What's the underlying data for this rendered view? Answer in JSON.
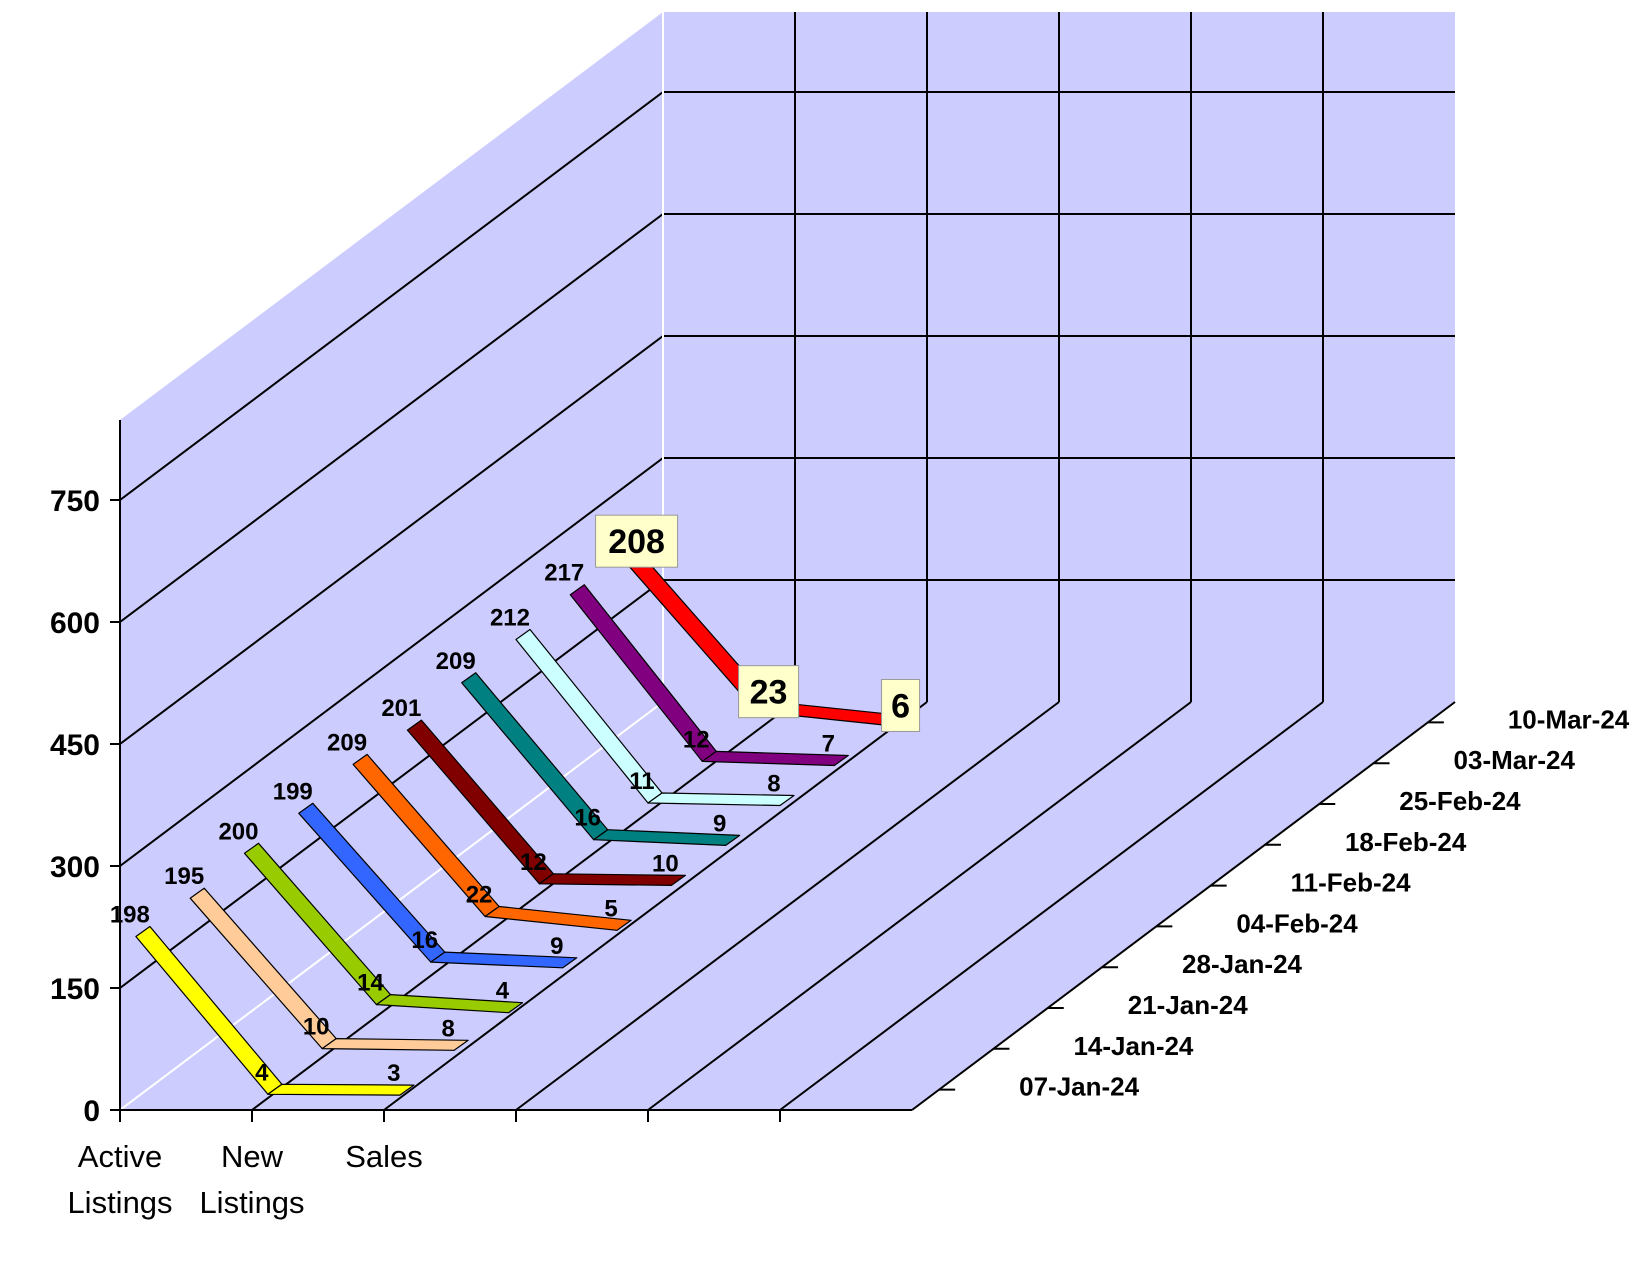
{
  "chart_data": {
    "type": "line",
    "style": "3d-ribbon",
    "categories": [
      "Active Listings",
      "New Listings",
      "Sales"
    ],
    "series": [
      {
        "name": "07-Jan-24",
        "values": [
          198,
          4,
          3
        ],
        "color": "#ffff00"
      },
      {
        "name": "14-Jan-24",
        "values": [
          195,
          10,
          8
        ],
        "color": "#ffcc99"
      },
      {
        "name": "21-Jan-24",
        "values": [
          200,
          14,
          4
        ],
        "color": "#99cc00"
      },
      {
        "name": "28-Jan-24",
        "values": [
          199,
          16,
          9
        ],
        "color": "#3366ff"
      },
      {
        "name": "04-Feb-24",
        "values": [
          209,
          22,
          5
        ],
        "color": "#ff6600"
      },
      {
        "name": "11-Feb-24",
        "values": [
          201,
          12,
          10
        ],
        "color": "#800000"
      },
      {
        "name": "18-Feb-24",
        "values": [
          209,
          16,
          9
        ],
        "color": "#008080"
      },
      {
        "name": "25-Feb-24",
        "values": [
          212,
          11,
          8
        ],
        "color": "#ccffff"
      },
      {
        "name": "03-Mar-24",
        "values": [
          217,
          12,
          7
        ],
        "color": "#800080"
      },
      {
        "name": "10-Mar-24",
        "values": [
          208,
          23,
          6
        ],
        "color": "#ff0000",
        "highlight": true
      }
    ],
    "yticks": [
      0,
      150,
      300,
      450,
      600,
      750
    ],
    "ylim": [
      0,
      850
    ],
    "grid": true,
    "wall_color": "#ccccff",
    "highlight_label_bg": "#ffffcc"
  }
}
